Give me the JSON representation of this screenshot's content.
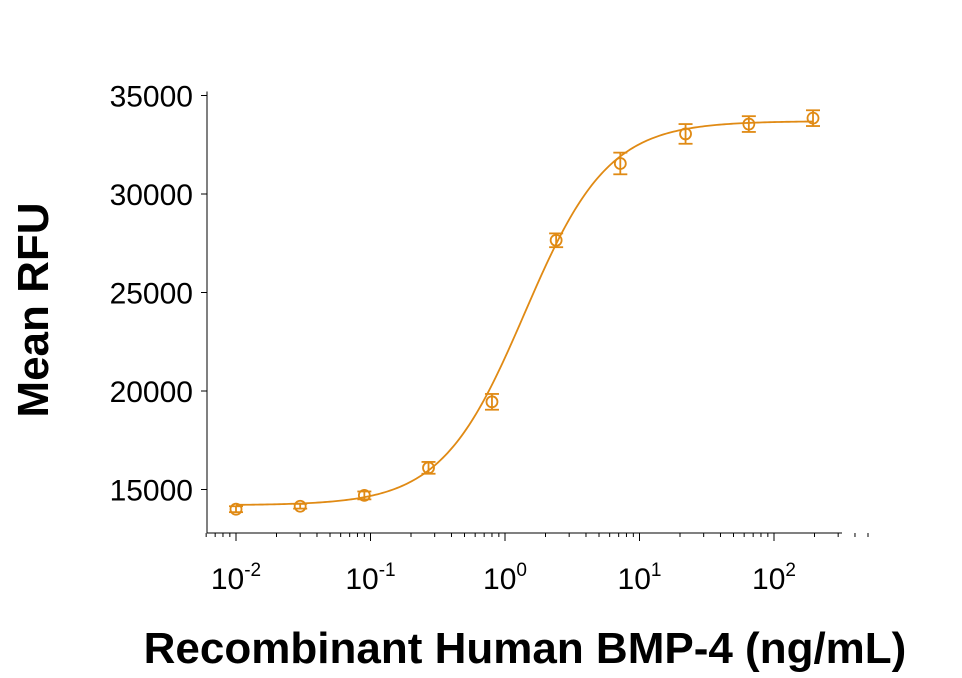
{
  "chart_data": {
    "type": "scatter",
    "xlabel": "Recombinant Human BMP-4 (ng/mL)",
    "ylabel": "Mean RFU",
    "x_scale": "log",
    "xlim": [
      0.006,
      500
    ],
    "ylim": [
      13000,
      35000
    ],
    "y_ticks": [
      15000,
      20000,
      25000,
      30000,
      35000
    ],
    "y_tick_labels": [
      "15000",
      "20000",
      "25000",
      "30000",
      "35000"
    ],
    "x_ticks": [
      0.01,
      0.1,
      1,
      10,
      100
    ],
    "x_tick_labels": [
      {
        "base": "10",
        "exp": "-2"
      },
      {
        "base": "10",
        "exp": "-1"
      },
      {
        "base": "10",
        "exp": "0"
      },
      {
        "base": "10",
        "exp": "1"
      },
      {
        "base": "10",
        "exp": "2"
      }
    ],
    "grid": false,
    "legend": "none",
    "color": "#E08A14",
    "series": [
      {
        "x": [
          0.01,
          0.03,
          0.09,
          0.27,
          0.8,
          2.4,
          7.2,
          22,
          65,
          195
        ],
        "y": [
          14000,
          14150,
          14700,
          16100,
          19450,
          27650,
          31550,
          33050,
          33550,
          33850
        ],
        "error": [
          150,
          120,
          200,
          300,
          400,
          350,
          550,
          500,
          400,
          400
        ]
      }
    ],
    "fit": {
      "model": "4PL",
      "bottom": 14200,
      "top": 33700,
      "ec50": 1.4,
      "hill": 1.4
    }
  }
}
